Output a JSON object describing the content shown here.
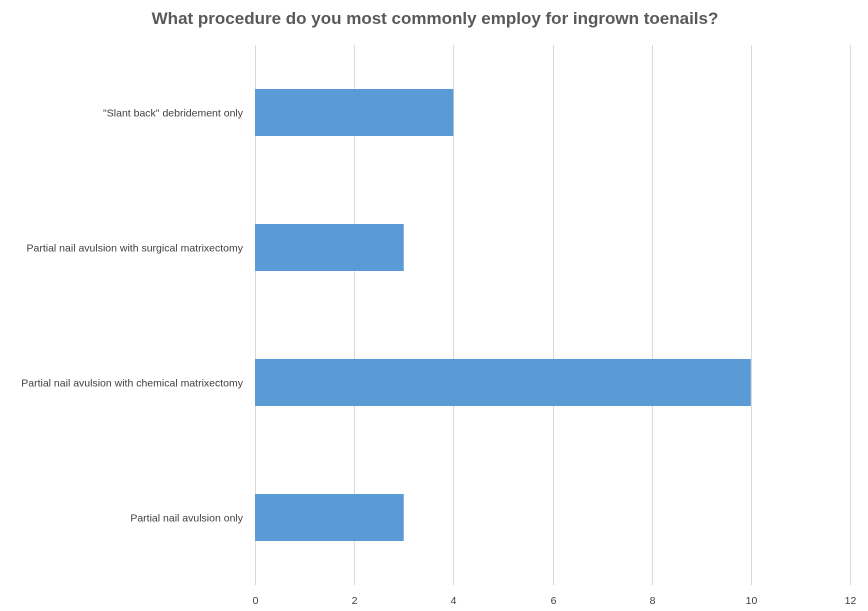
{
  "chart_data": {
    "type": "bar",
    "orientation": "horizontal",
    "title": "What procedure do you most commonly employ for ingrown toenails?",
    "categories": [
      "\"Slant back\" debridement only",
      "Partial nail avulsion with surgical matrixectomy",
      "Partial nail avulsion with chemical matrixectomy",
      "Partial nail avulsion only"
    ],
    "values": [
      4,
      3,
      10,
      3
    ],
    "xlim": [
      0,
      12
    ],
    "xticks": [
      0,
      2,
      4,
      6,
      8,
      10,
      12
    ],
    "xlabel": "",
    "ylabel": "",
    "grid": true,
    "bar_color": "#5b9bd5"
  }
}
